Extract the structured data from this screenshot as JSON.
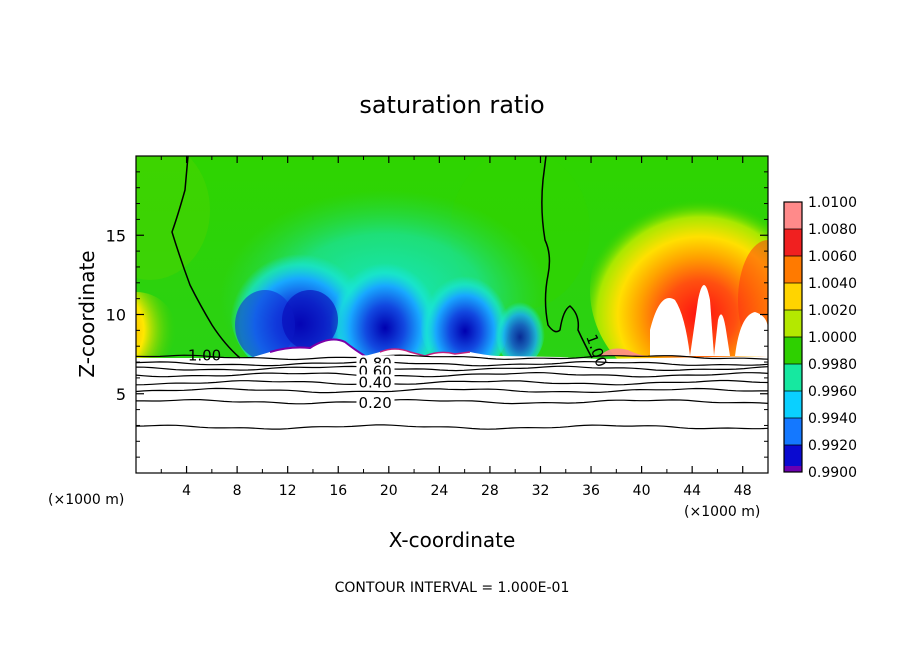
{
  "chart_data": {
    "type": "heatmap",
    "title": "saturation ratio",
    "xlabel": "X-coordinate",
    "ylabel": "Z-coordinate",
    "x_unit_left": "(×1000 m)",
    "x_unit_right": "(×1000 m)",
    "footer": "CONTOUR INTERVAL = 1.000E-01",
    "xlim": [
      0,
      50
    ],
    "ylim": [
      0,
      20
    ],
    "x_ticks": [
      4,
      8,
      12,
      16,
      20,
      24,
      28,
      32,
      36,
      40,
      44,
      48
    ],
    "y_ticks": [
      5,
      10,
      15
    ],
    "colorbar": {
      "levels": [
        "1.0100",
        "1.0080",
        "1.0060",
        "1.0040",
        "1.0020",
        "1.0000",
        "0.9980",
        "0.9960",
        "0.9940",
        "0.9920",
        "0.9900"
      ],
      "colors": [
        "#ff8a8a",
        "#f02020",
        "#ff7a00",
        "#ffd400",
        "#b4e800",
        "#2ed000",
        "#16e8a0",
        "#0ad0ff",
        "#1478ff",
        "#0a0ad0",
        "#6a00b0"
      ]
    },
    "contour_labels": [
      {
        "text": "1.00",
        "x": 4.1,
        "y": 7.1
      },
      {
        "text": "1.00",
        "x": 35.6,
        "y": 8.6
      },
      {
        "text": "0.80",
        "x": 17.6,
        "y": 6.6
      },
      {
        "text": "0.60",
        "x": 17.6,
        "y": 6.1
      },
      {
        "text": "0.40",
        "x": 17.6,
        "y": 5.4
      },
      {
        "text": "0.20",
        "x": 17.6,
        "y": 4.1
      }
    ],
    "contour_lines_z": [
      7.3,
      6.9,
      6.6,
      6.2,
      5.7,
      5.2,
      4.5,
      2.9
    ],
    "unsaturated_top_z": 7.2
  }
}
